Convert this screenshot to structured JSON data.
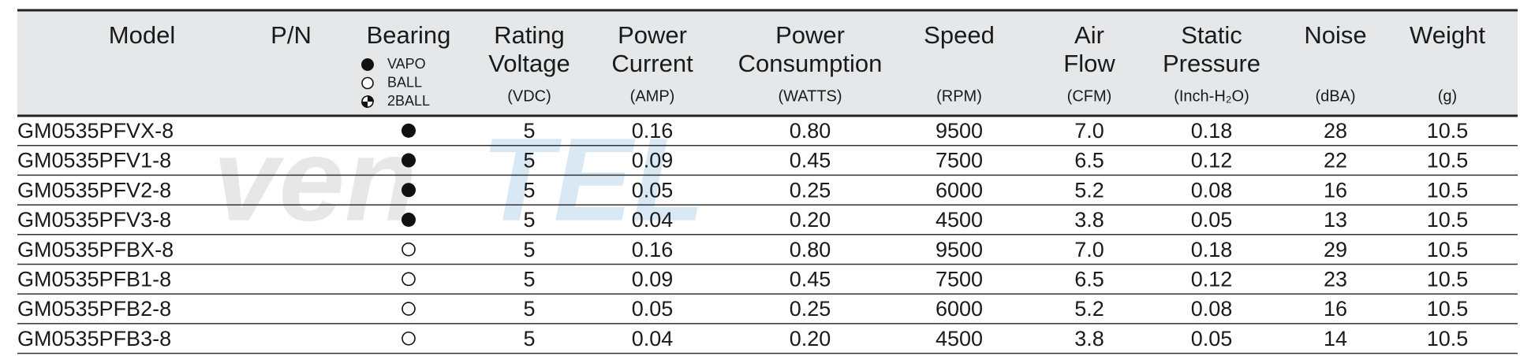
{
  "watermark": [
    "ven",
    "tel"
  ],
  "header": {
    "columns": [
      {
        "title": [
          "Model"
        ]
      },
      {
        "title": [
          "P/N"
        ]
      },
      {
        "title": [
          "Bearing"
        ]
      },
      {
        "title": [
          "Rating",
          "Voltage"
        ],
        "unit": "(VDC)"
      },
      {
        "title": [
          "Power",
          "Current"
        ],
        "unit": "(AMP)"
      },
      {
        "title": [
          "Power",
          "Consumption"
        ],
        "unit": "(WATTS)"
      },
      {
        "title": [
          "Speed"
        ],
        "unit": "(RPM)"
      },
      {
        "title": [
          "Air",
          "Flow"
        ],
        "unit": "(CFM)"
      },
      {
        "title": [
          "Static",
          "Pressure"
        ],
        "unit": "(Inch-H₂O)"
      },
      {
        "title": [
          "Noise"
        ],
        "unit": "(dBA)"
      },
      {
        "title": [
          "Weight"
        ],
        "unit": "(g)"
      }
    ],
    "bearing_legend": [
      "VAPO",
      "BALL",
      "2BALL"
    ]
  },
  "table": {
    "rows": [
      {
        "model": "GM0535PFVX-8",
        "bearing": "VAPO",
        "values": [
          "5",
          "0.16",
          "0.80",
          "9500",
          "7.0",
          "0.18",
          "28",
          "10.5"
        ]
      },
      {
        "model": "GM0535PFV1-8",
        "bearing": "VAPO",
        "values": [
          "5",
          "0.09",
          "0.45",
          "7500",
          "6.5",
          "0.12",
          "22",
          "10.5"
        ]
      },
      {
        "model": "GM0535PFV2-8",
        "bearing": "VAPO",
        "values": [
          "5",
          "0.05",
          "0.25",
          "6000",
          "5.2",
          "0.08",
          "16",
          "10.5"
        ]
      },
      {
        "model": "GM0535PFV3-8",
        "bearing": "VAPO",
        "values": [
          "5",
          "0.04",
          "0.20",
          "4500",
          "3.8",
          "0.05",
          "13",
          "10.5"
        ]
      },
      {
        "model": "GM0535PFBX-8",
        "bearing": "BALL",
        "values": [
          "5",
          "0.16",
          "0.80",
          "9500",
          "7.0",
          "0.18",
          "29",
          "10.5"
        ]
      },
      {
        "model": "GM0535PFB1-8",
        "bearing": "BALL",
        "values": [
          "5",
          "0.09",
          "0.45",
          "7500",
          "6.5",
          "0.12",
          "23",
          "10.5"
        ]
      },
      {
        "model": "GM0535PFB2-8",
        "bearing": "BALL",
        "values": [
          "5",
          "0.05",
          "0.25",
          "6000",
          "5.2",
          "0.08",
          "16",
          "10.5"
        ]
      },
      {
        "model": "GM0535PFB3-8",
        "bearing": "BALL",
        "values": [
          "5",
          "0.04",
          "0.20",
          "4500",
          "3.8",
          "0.05",
          "14",
          "10.5"
        ]
      }
    ]
  }
}
